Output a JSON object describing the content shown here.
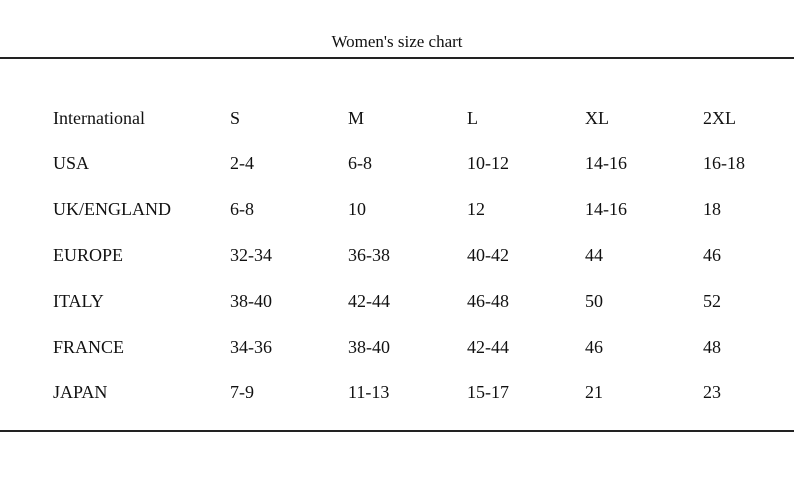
{
  "title": "Women's size chart",
  "table": {
    "header": [
      "International",
      "S",
      "M",
      "L",
      "XL",
      "2XL"
    ],
    "rows": [
      [
        "USA",
        "2-4",
        "6-8",
        "10-12",
        "14-16",
        "16-18"
      ],
      [
        "UK/ENGLAND",
        "6-8",
        "10",
        "12",
        "14-16",
        "18"
      ],
      [
        "EUROPE",
        "32-34",
        "36-38",
        "40-42",
        "44",
        "46"
      ],
      [
        "ITALY",
        "38-40",
        "42-44",
        "46-48",
        "50",
        "52"
      ],
      [
        "FRANCE",
        "34-36",
        "38-40",
        "42-44",
        "46",
        "48"
      ],
      [
        "JAPAN",
        "7-9",
        "11-13",
        "15-17",
        "21",
        "23"
      ]
    ]
  }
}
